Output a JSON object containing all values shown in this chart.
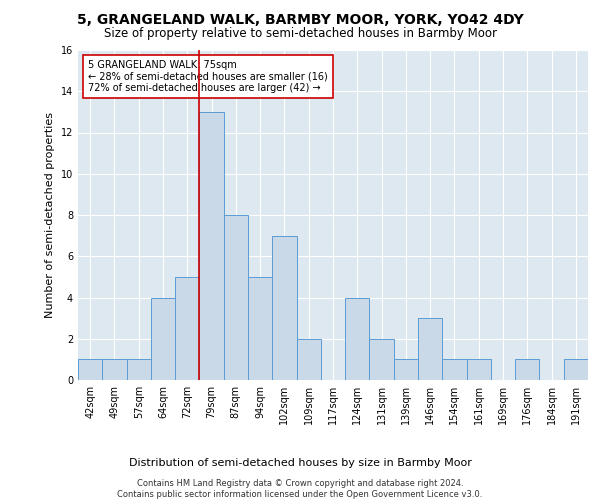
{
  "title": "5, GRANGELAND WALK, BARMBY MOOR, YORK, YO42 4DY",
  "subtitle": "Size of property relative to semi-detached houses in Barmby Moor",
  "xlabel_bottom": "Distribution of semi-detached houses by size in Barmby Moor",
  "ylabel": "Number of semi-detached properties",
  "footnote1": "Contains HM Land Registry data © Crown copyright and database right 2024.",
  "footnote2": "Contains public sector information licensed under the Open Government Licence v3.0.",
  "bin_labels": [
    "42sqm",
    "49sqm",
    "57sqm",
    "64sqm",
    "72sqm",
    "79sqm",
    "87sqm",
    "94sqm",
    "102sqm",
    "109sqm",
    "117sqm",
    "124sqm",
    "131sqm",
    "139sqm",
    "146sqm",
    "154sqm",
    "161sqm",
    "169sqm",
    "176sqm",
    "184sqm",
    "191sqm"
  ],
  "bar_values": [
    1,
    1,
    1,
    4,
    5,
    13,
    8,
    5,
    7,
    2,
    0,
    4,
    2,
    1,
    3,
    1,
    1,
    0,
    1,
    0,
    1
  ],
  "bar_color": "#c9d9e8",
  "bar_edge_color": "#5b9bd5",
  "subject_bin_index": 4,
  "red_line_color": "#cc0000",
  "annotation_text_lines": [
    "5 GRANGELAND WALK: 75sqm",
    "← 28% of semi-detached houses are smaller (16)",
    "72% of semi-detached houses are larger (42) →"
  ],
  "ylim": [
    0,
    16
  ],
  "yticks": [
    0,
    2,
    4,
    6,
    8,
    10,
    12,
    14,
    16
  ],
  "fig_bg_color": "#ffffff",
  "ax_bg_color": "#dde8f0",
  "grid_color": "#ffffff",
  "title_fontsize": 10,
  "subtitle_fontsize": 8.5,
  "axis_label_fontsize": 8,
  "tick_fontsize": 7,
  "annotation_fontsize": 7,
  "footnote_fontsize": 6
}
